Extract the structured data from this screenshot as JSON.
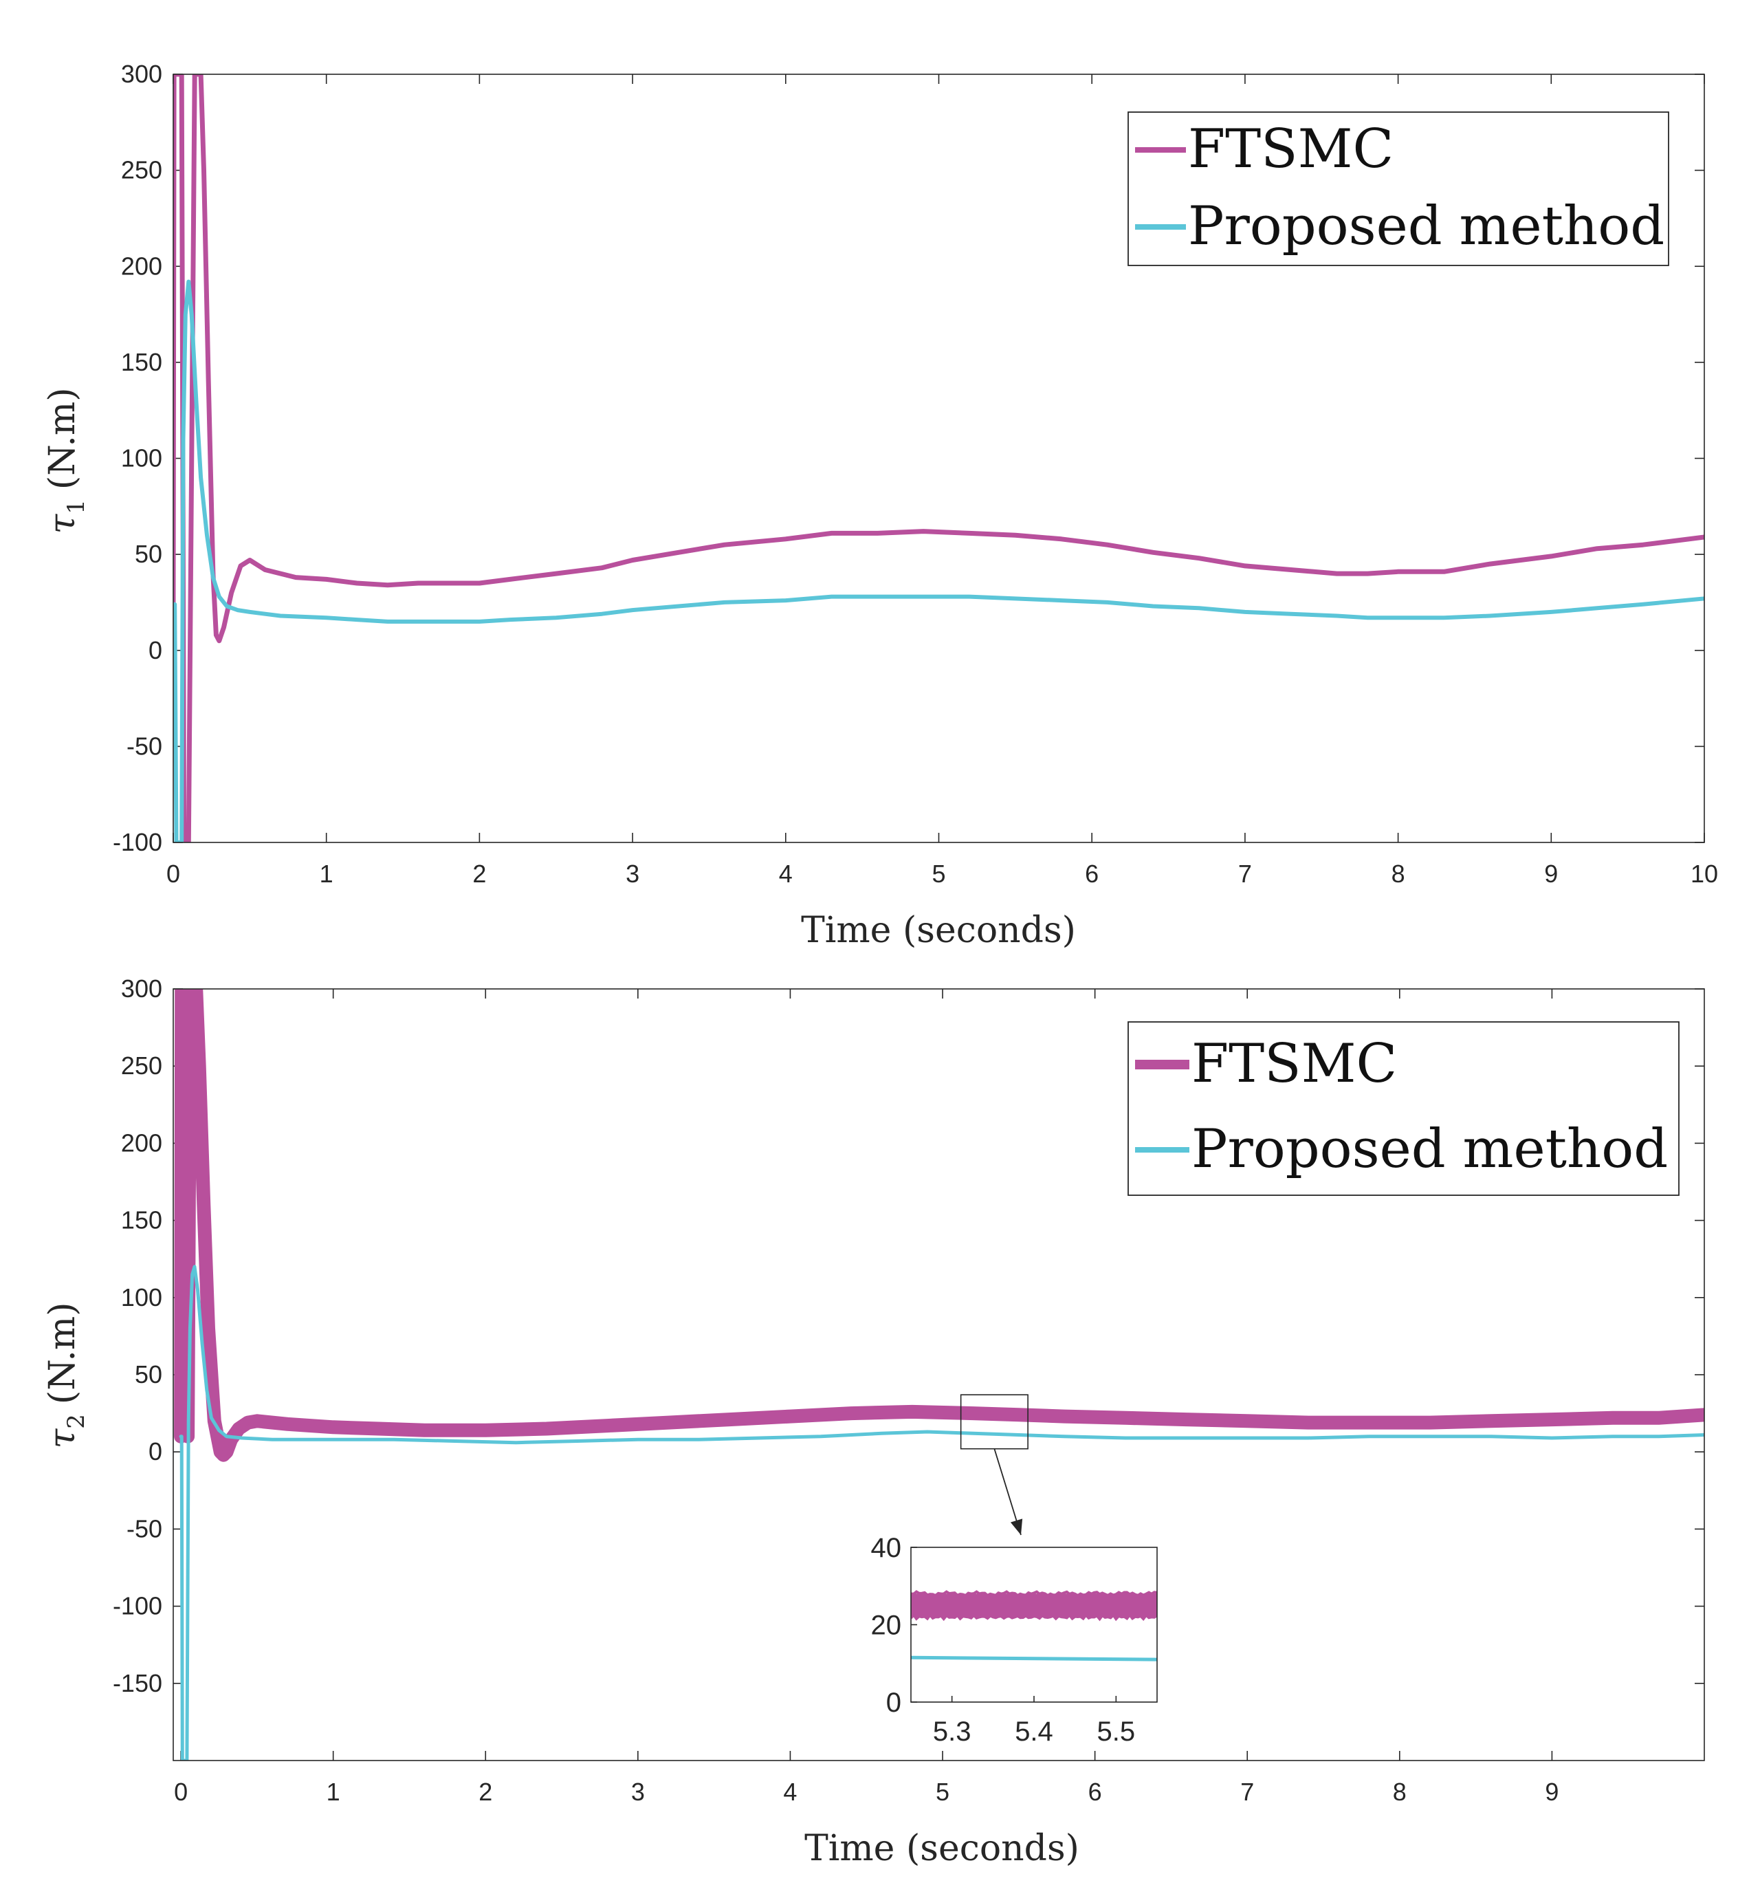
{
  "colors": {
    "ftsmc": "#b8509c",
    "proposed": "#5bc5d8",
    "axis": "#262626"
  },
  "chart_data": [
    {
      "type": "line",
      "xlabel": "Time (seconds)",
      "ylabel_symbol": "τ",
      "ylabel_subscript": "1",
      "ylabel_unit": "(N.m)",
      "xlim": [
        0,
        10
      ],
      "ylim": [
        -100,
        300
      ],
      "xticks": [
        0,
        1,
        2,
        3,
        4,
        5,
        6,
        7,
        8,
        9,
        10
      ],
      "yticks": [
        -100,
        -50,
        0,
        50,
        100,
        150,
        200,
        250,
        300
      ],
      "legend": {
        "position": "top-right",
        "entries": [
          "FTSMC",
          "Proposed method"
        ]
      },
      "series": [
        {
          "name": "FTSMC",
          "color": "#b8509c",
          "x": [
            0,
            0.005,
            0.01,
            0.02,
            0.04,
            0.055,
            0.07,
            0.1,
            0.14,
            0.18,
            0.2,
            0.23,
            0.26,
            0.28,
            0.3,
            0.33,
            0.38,
            0.44,
            0.5,
            0.6,
            0.8,
            1.0,
            1.2,
            1.4,
            1.6,
            1.8,
            2.0,
            2.2,
            2.5,
            2.8,
            3.0,
            3.3,
            3.6,
            4.0,
            4.3,
            4.6,
            4.9,
            5.2,
            5.5,
            5.8,
            6.1,
            6.4,
            6.7,
            7.0,
            7.3,
            7.6,
            7.8,
            8.0,
            8.3,
            8.6,
            9.0,
            9.3,
            9.6,
            10.0
          ],
          "values": [
            25,
            300,
            300,
            300,
            300,
            300,
            -100,
            -100,
            300,
            300,
            250,
            140,
            40,
            8,
            5,
            12,
            30,
            44,
            47,
            42,
            38,
            37,
            35,
            34,
            35,
            35,
            35,
            37,
            40,
            43,
            47,
            51,
            55,
            58,
            61,
            61,
            62,
            61,
            60,
            58,
            55,
            51,
            48,
            44,
            42,
            40,
            40,
            41,
            41,
            45,
            49,
            53,
            55,
            59
          ]
        },
        {
          "name": "Proposed method",
          "color": "#5bc5d8",
          "x": [
            0,
            0.01,
            0.02,
            0.04,
            0.055,
            0.065,
            0.08,
            0.1,
            0.12,
            0.15,
            0.18,
            0.22,
            0.26,
            0.3,
            0.35,
            0.42,
            0.5,
            0.7,
            1.0,
            1.2,
            1.4,
            1.6,
            1.8,
            2.0,
            2.2,
            2.5,
            2.8,
            3.0,
            3.3,
            3.6,
            4.0,
            4.3,
            4.6,
            4.9,
            5.2,
            5.5,
            5.8,
            6.1,
            6.4,
            6.7,
            7.0,
            7.3,
            7.6,
            7.8,
            8.0,
            8.3,
            8.6,
            9.0,
            9.3,
            9.6,
            10.0
          ],
          "values": [
            23,
            24,
            -100,
            -100,
            -100,
            110,
            175,
            192,
            175,
            130,
            90,
            60,
            38,
            28,
            23,
            21,
            20,
            18,
            17,
            16,
            15,
            15,
            15,
            15,
            16,
            17,
            19,
            21,
            23,
            25,
            26,
            28,
            28,
            28,
            28,
            27,
            26,
            25,
            23,
            22,
            20,
            19,
            18,
            17,
            17,
            17,
            18,
            20,
            22,
            24,
            27
          ]
        }
      ]
    },
    {
      "type": "line",
      "xlabel": "Time (seconds)",
      "ylabel_symbol": "τ",
      "ylabel_subscript": "2",
      "ylabel_unit": "(N.m)",
      "xlim": [
        -0.05,
        10
      ],
      "ylim": [
        -200,
        300
      ],
      "xticks": [
        0,
        1,
        2,
        3,
        4,
        5,
        6,
        7,
        8,
        9
      ],
      "yticks": [
        -150,
        -100,
        -50,
        0,
        50,
        100,
        150,
        200,
        250,
        300
      ],
      "legend": {
        "position": "top-right",
        "entries": [
          "FTSMC",
          "Proposed method"
        ]
      },
      "series": [
        {
          "name": "FTSMC",
          "color": "#b8509c",
          "x": [
            0,
            0.005,
            0.01,
            0.03,
            0.045,
            0.06,
            0.08,
            0.1,
            0.12,
            0.15,
            0.18,
            0.22,
            0.26,
            0.28,
            0.3,
            0.33,
            0.38,
            0.44,
            0.5,
            0.7,
            1.0,
            1.3,
            1.6,
            2.0,
            2.4,
            2.8,
            3.2,
            3.6,
            4.0,
            4.4,
            4.8,
            5.2,
            5.5,
            5.8,
            6.2,
            6.6,
            7.0,
            7.4,
            7.8,
            8.2,
            8.6,
            9.0,
            9.4,
            9.7,
            10.0
          ],
          "values": [
            10,
            300,
            300,
            300,
            10,
            300,
            300,
            300,
            250,
            160,
            80,
            20,
            0,
            -2,
            0,
            8,
            15,
            19,
            20,
            18,
            16,
            15,
            14,
            14,
            15,
            17,
            19,
            21,
            23,
            25,
            26,
            25,
            24,
            23,
            22,
            21,
            20,
            19,
            19,
            19,
            20,
            21,
            22,
            22,
            24
          ]
        },
        {
          "name": "Proposed method",
          "color": "#5bc5d8",
          "x": [
            0,
            0.005,
            0.01,
            0.02,
            0.03,
            0.04,
            0.05,
            0.06,
            0.075,
            0.09,
            0.11,
            0.14,
            0.17,
            0.2,
            0.25,
            0.3,
            0.4,
            0.6,
            1.0,
            1.4,
            1.8,
            2.2,
            2.6,
            3.0,
            3.4,
            3.8,
            4.2,
            4.6,
            4.9,
            5.2,
            5.5,
            5.8,
            6.2,
            6.6,
            7.0,
            7.4,
            7.8,
            8.2,
            8.6,
            9.0,
            9.4,
            9.7,
            10.0
          ],
          "values": [
            10,
            10,
            -200,
            -200,
            -200,
            -200,
            20,
            80,
            115,
            120,
            105,
            70,
            40,
            22,
            14,
            10,
            9,
            8,
            8,
            8,
            7,
            6,
            7,
            8,
            8,
            9,
            10,
            12,
            13,
            12,
            11,
            10,
            9,
            9,
            9,
            9,
            10,
            10,
            10,
            9,
            10,
            10,
            11
          ]
        }
      ],
      "zoom_box": {
        "xrange": [
          5.12,
          5.56
        ],
        "yrange": [
          2,
          37
        ]
      },
      "inset": {
        "xlim": [
          5.25,
          5.55
        ],
        "ylim": [
          0,
          40
        ],
        "xticks": [
          5.3,
          5.4,
          5.5
        ],
        "yticks": [
          0,
          20,
          40
        ],
        "series": [
          {
            "name": "FTSMC",
            "color": "#b8509c",
            "x": [
              5.25,
              5.55
            ],
            "values": [
              25,
              25
            ],
            "band": 3
          },
          {
            "name": "Proposed method",
            "color": "#5bc5d8",
            "x": [
              5.25,
              5.55
            ],
            "values": [
              11.5,
              11
            ]
          }
        ]
      }
    }
  ]
}
